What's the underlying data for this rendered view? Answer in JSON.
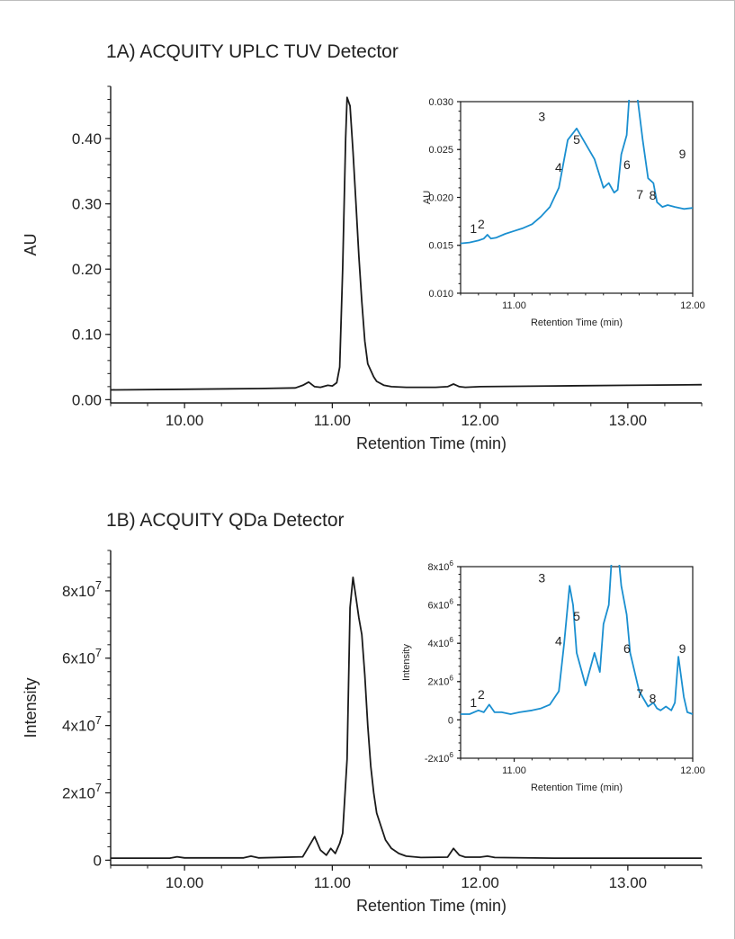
{
  "panels": [
    {
      "title": "1A) ACQUITY UPLC TUV Detector",
      "main": {
        "type": "line",
        "xlabel": "Retention Time (min)",
        "ylabel": "AU",
        "xlim": [
          9.5,
          13.5
        ],
        "ylim": [
          -0.005,
          0.48
        ],
        "xticks": [
          10,
          11,
          12,
          13
        ],
        "xtick_labels": [
          "10.00",
          "11.00",
          "12.00",
          "13.00"
        ],
        "yticks": [
          0,
          0.1,
          0.2,
          0.3,
          0.4
        ],
        "ytick_labels": [
          "0.00",
          "0.10",
          "0.20",
          "0.30",
          "0.40"
        ],
        "series": [
          {
            "color": "#1a1a1a",
            "x": [
              9.5,
              10.0,
              10.5,
              10.75,
              10.8,
              10.84,
              10.88,
              10.92,
              10.97,
              11.0,
              11.03,
              11.05,
              11.07,
              11.09,
              11.1,
              11.12,
              11.14,
              11.16,
              11.18,
              11.2,
              11.22,
              11.24,
              11.26,
              11.28,
              11.3,
              11.35,
              11.4,
              11.5,
              11.7,
              11.78,
              11.82,
              11.86,
              11.9,
              12.0,
              12.5,
              13.0,
              13.5
            ],
            "y": [
              0.015,
              0.016,
              0.017,
              0.018,
              0.022,
              0.027,
              0.02,
              0.019,
              0.022,
              0.021,
              0.026,
              0.05,
              0.2,
              0.4,
              0.463,
              0.45,
              0.38,
              0.3,
              0.22,
              0.15,
              0.09,
              0.055,
              0.045,
              0.035,
              0.028,
              0.022,
              0.02,
              0.019,
              0.019,
              0.02,
              0.024,
              0.02,
              0.019,
              0.02,
              0.021,
              0.022,
              0.023
            ]
          }
        ]
      },
      "inset": {
        "type": "line",
        "xlabel": "Retention Time (min)",
        "ylabel": "AU",
        "xlim": [
          10.7,
          12.0
        ],
        "ylim": [
          0.01,
          0.03
        ],
        "xticks": [
          11,
          12
        ],
        "xtick_labels": [
          "11.00",
          "12.00"
        ],
        "yticks": [
          0.01,
          0.015,
          0.02,
          0.025,
          0.03
        ],
        "ytick_labels": [
          "0.010",
          "0.015",
          "0.020",
          "0.025",
          "0.030"
        ],
        "series": [
          {
            "color": "#1a8fd0",
            "x": [
              10.7,
              10.75,
              10.8,
              10.83,
              10.85,
              10.87,
              10.9,
              10.95,
              11.0,
              11.05,
              11.1,
              11.15,
              11.2,
              11.25,
              11.3,
              11.35,
              11.45,
              11.5,
              11.53,
              11.56,
              11.58,
              11.6,
              11.63,
              11.65,
              11.68,
              11.72,
              11.75,
              11.78,
              11.8,
              11.83,
              11.86,
              11.9,
              11.95,
              12.0
            ],
            "y": [
              0.0152,
              0.0153,
              0.0155,
              0.0157,
              0.0161,
              0.0157,
              0.0158,
              0.0162,
              0.0165,
              0.0168,
              0.0172,
              0.018,
              0.019,
              0.021,
              0.026,
              0.0272,
              0.024,
              0.021,
              0.0215,
              0.0205,
              0.0208,
              0.0245,
              0.0265,
              0.032,
              0.032,
              0.026,
              0.022,
              0.0215,
              0.0195,
              0.019,
              0.0192,
              0.019,
              0.0188,
              0.0189
            ]
          }
        ],
        "annotations": [
          {
            "label": "1",
            "x": 10.8,
            "y": 0.0159
          },
          {
            "label": "2",
            "x": 10.86,
            "y": 0.0164
          },
          {
            "label": "3",
            "x": 11.33,
            "y": 0.0276
          },
          {
            "label": "4",
            "x": 11.46,
            "y": 0.0223
          },
          {
            "label": "5",
            "x": 11.6,
            "y": 0.0252
          },
          {
            "label": "6",
            "x": 11.99,
            "y": 0.0226
          },
          {
            "label": "7",
            "x": 12.09,
            "y": 0.0195
          },
          {
            "label": "8",
            "x": 12.19,
            "y": 0.0194
          },
          {
            "label": "9",
            "x": 12.42,
            "y": 0.0237
          }
        ]
      }
    },
    {
      "title": "1B) ACQUITY QDa Detector",
      "main": {
        "type": "line",
        "xlabel": "Retention Time (min)",
        "ylabel": "Intensity",
        "xlim": [
          9.5,
          13.5
        ],
        "ylim": [
          -1500000,
          92000000
        ],
        "xticks": [
          10,
          11,
          12,
          13
        ],
        "xtick_labels": [
          "10.00",
          "11.00",
          "12.00",
          "13.00"
        ],
        "yticks": [
          0,
          20000000,
          40000000,
          60000000,
          80000000
        ],
        "ytick_labels": [
          {
            "base": "0",
            "exp": ""
          },
          {
            "base": "2x10",
            "exp": "7"
          },
          {
            "base": "4x10",
            "exp": "7"
          },
          {
            "base": "6x10",
            "exp": "7"
          },
          {
            "base": "8x10",
            "exp": "7"
          }
        ],
        "series": [
          {
            "color": "#1a1a1a",
            "x": [
              9.5,
              9.9,
              9.95,
              10.0,
              10.4,
              10.45,
              10.5,
              10.8,
              10.84,
              10.88,
              10.92,
              10.96,
              10.99,
              11.02,
              11.05,
              11.07,
              11.1,
              11.12,
              11.14,
              11.16,
              11.18,
              11.2,
              11.22,
              11.24,
              11.26,
              11.28,
              11.3,
              11.33,
              11.36,
              11.4,
              11.45,
              11.5,
              11.6,
              11.78,
              11.82,
              11.86,
              11.9,
              12.0,
              12.05,
              12.1,
              12.5,
              13.0,
              13.5
            ],
            "y": [
              600000,
              600000,
              1000000,
              700000,
              700000,
              1200000,
              700000,
              1000000,
              4000000,
              7000000,
              3000000,
              1500000,
              3500000,
              2000000,
              5000000,
              8000000,
              30000000,
              75000000,
              84000000,
              78000000,
              72000000,
              67000000,
              55000000,
              40000000,
              28000000,
              20000000,
              14000000,
              10000000,
              6000000,
              3500000,
              2000000,
              1200000,
              800000,
              900000,
              3500000,
              1500000,
              900000,
              900000,
              1200000,
              800000,
              600000,
              600000,
              600000
            ]
          }
        ]
      },
      "inset": {
        "type": "line",
        "xlabel": "Retention Time (min)",
        "ylabel": "Intensity",
        "xlim": [
          10.7,
          12.0
        ],
        "ylim": [
          -2000000,
          8000000
        ],
        "xticks": [
          11,
          12
        ],
        "xtick_labels": [
          "11.00",
          "12.00"
        ],
        "yticks": [
          -2000000,
          0,
          2000000,
          4000000,
          6000000,
          8000000
        ],
        "ytick_labels": [
          {
            "base": "-2x10",
            "exp": "6"
          },
          {
            "base": "0",
            "exp": ""
          },
          {
            "base": "2x10",
            "exp": "6"
          },
          {
            "base": "4x10",
            "exp": "6"
          },
          {
            "base": "6x10",
            "exp": "6"
          },
          {
            "base": "8x10",
            "exp": "6"
          }
        ],
        "series": [
          {
            "color": "#1a8fd0",
            "x": [
              10.7,
              10.75,
              10.8,
              10.83,
              10.86,
              10.89,
              10.93,
              10.98,
              11.03,
              11.1,
              11.15,
              11.2,
              11.25,
              11.28,
              11.31,
              11.33,
              11.35,
              11.4,
              11.45,
              11.48,
              11.5,
              11.53,
              11.55,
              11.58,
              11.6,
              11.63,
              11.65,
              11.7,
              11.75,
              11.78,
              11.8,
              11.82,
              11.85,
              11.88,
              11.9,
              11.92,
              11.95,
              11.97,
              12.0
            ],
            "y": [
              300000,
              300000,
              500000,
              400000,
              800000,
              400000,
              400000,
              300000,
              400000,
              500000,
              600000,
              800000,
              1500000,
              4000000,
              7000000,
              6000000,
              3500000,
              1800000,
              3500000,
              2500000,
              5000000,
              6000000,
              9000000,
              9000000,
              7000000,
              5500000,
              3500000,
              1500000,
              700000,
              900000,
              600000,
              500000,
              700000,
              500000,
              900000,
              3300000,
              1200000,
              400000,
              300000
            ]
          }
        ],
        "annotations": [
          {
            "label": "1",
            "x": 10.8,
            "y": 500000
          },
          {
            "label": "2",
            "x": 10.86,
            "y": 900000
          },
          {
            "label": "3",
            "x": 11.33,
            "y": 7000000
          },
          {
            "label": "4",
            "x": 11.46,
            "y": 3700000
          },
          {
            "label": "5",
            "x": 11.6,
            "y": 5000000
          },
          {
            "label": "6",
            "x": 11.99,
            "y": 3300000
          },
          {
            "label": "7",
            "x": 12.09,
            "y": 950000
          },
          {
            "label": "8",
            "x": 12.19,
            "y": 700000
          },
          {
            "label": "9",
            "x": 12.42,
            "y": 3300000
          }
        ]
      }
    }
  ],
  "chart_data": [
    {
      "type": "line",
      "title": "1A) ACQUITY UPLC TUV Detector",
      "xlabel": "Retention Time (min)",
      "ylabel": "AU",
      "xlim": [
        9.5,
        13.5
      ],
      "ylim": [
        0,
        0.48
      ],
      "series": [
        {
          "x": [
            9.5,
            10.0,
            10.5,
            10.84,
            11.0,
            11.1,
            11.14,
            11.2,
            11.3,
            11.5,
            11.82,
            12.0,
            13.0,
            13.5
          ],
          "y": [
            0.015,
            0.016,
            0.017,
            0.027,
            0.021,
            0.463,
            0.38,
            0.15,
            0.028,
            0.019,
            0.024,
            0.02,
            0.022,
            0.023
          ]
        }
      ]
    },
    {
      "type": "line",
      "title": "1A) ACQUITY UPLC TUV Detector",
      "xlabel": "Retention Time (min)",
      "ylabel": "AU",
      "xlim": [
        10.7,
        12.0
      ],
      "ylim": [
        0.01,
        0.03
      ],
      "peak_labels": [
        "1",
        "2",
        "3",
        "4",
        "5",
        "6",
        "7",
        "8",
        "9"
      ],
      "series": [
        {
          "x": [
            10.75,
            10.85,
            11.35,
            11.5,
            11.6,
            11.65,
            11.78,
            11.83,
            11.9
          ],
          "y": [
            0.0153,
            0.0161,
            0.0272,
            0.021,
            0.0245,
            0.032,
            0.0215,
            0.019,
            0.019
          ]
        }
      ]
    },
    {
      "type": "line",
      "title": "1B) ACQUITY QDa Detector",
      "xlabel": "Retention Time (min)",
      "ylabel": "Intensity",
      "xlim": [
        9.5,
        13.5
      ],
      "ylim": [
        0,
        90000000
      ],
      "series": [
        {
          "x": [
            9.5,
            10.0,
            10.5,
            10.88,
            11.0,
            11.14,
            11.2,
            11.3,
            11.5,
            11.82,
            12.0,
            13.0,
            13.5
          ],
          "y": [
            600000,
            700000,
            700000,
            7000000,
            3000000,
            84000000,
            67000000,
            14000000,
            1200000,
            3500000,
            900000,
            600000,
            600000
          ]
        }
      ]
    },
    {
      "type": "line",
      "title": "1B) ACQUITY QDa Detector",
      "xlabel": "Retention Time (min)",
      "ylabel": "Intensity",
      "xlim": [
        10.7,
        12.0
      ],
      "ylim": [
        -2000000,
        8000000
      ],
      "peak_labels": [
        "1",
        "2",
        "3",
        "4",
        "5",
        "6",
        "7",
        "8",
        "9"
      ],
      "series": [
        {
          "x": [
            10.8,
            10.86,
            11.31,
            11.45,
            11.55,
            11.62,
            11.78,
            11.84,
            11.92
          ],
          "y": [
            500000,
            800000,
            7000000,
            3500000,
            9000000,
            6000000,
            900000,
            700000,
            3300000
          ]
        }
      ]
    }
  ]
}
